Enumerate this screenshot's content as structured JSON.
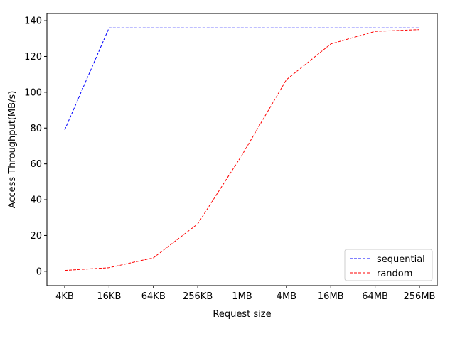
{
  "chart_data": {
    "type": "line",
    "title": "",
    "xlabel": "Request size",
    "ylabel": "Access Throughput(MB/s)",
    "categories": [
      "4KB",
      "16KB",
      "64KB",
      "256KB",
      "1MB",
      "4MB",
      "16MB",
      "64MB",
      "256MB"
    ],
    "ylim": [
      -8,
      144
    ],
    "yticks": [
      0,
      20,
      40,
      60,
      80,
      100,
      120,
      140
    ],
    "grid": false,
    "legend_position": "lower-right",
    "series": [
      {
        "name": "sequential",
        "color": "#0000ff",
        "linestyle": "dashed",
        "values": [
          79,
          136,
          136,
          136,
          136,
          136,
          136,
          136,
          136
        ]
      },
      {
        "name": "random",
        "color": "#ff0000",
        "linestyle": "dashed",
        "values": [
          0.5,
          2,
          7.5,
          26.5,
          65,
          107,
          127,
          134,
          135
        ]
      }
    ]
  }
}
